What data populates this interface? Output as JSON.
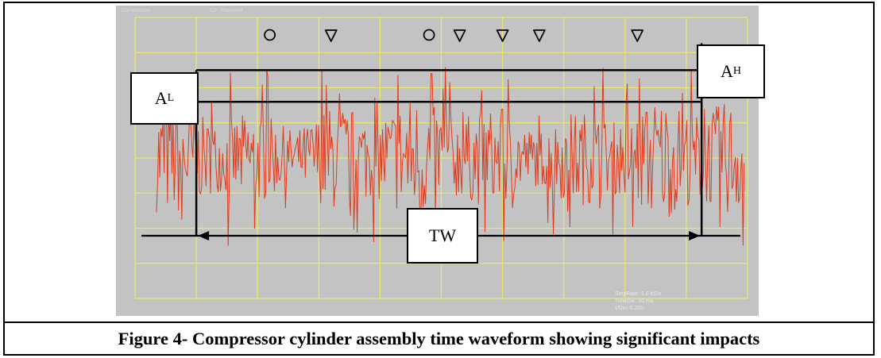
{
  "figure": {
    "caption": "Figure 4- Compressor cylinder assembly time waveform showing significant impacts"
  },
  "scope": {
    "header_left": "Compressor",
    "header_mid": "Ch: Transient",
    "readout": [
      "SmpRate: 1.0 kS/s",
      "TimeDiv: 50 ms",
      "VDiv: 0.200"
    ]
  },
  "annotations": {
    "a_low": {
      "base": "A",
      "sub": "L"
    },
    "a_high": {
      "base": "A",
      "sub": "H"
    },
    "tw": "TW",
    "markers": [
      "circle",
      "triangle",
      "circle",
      "triangle",
      "triangle",
      "triangle",
      "triangle"
    ],
    "marker_icon_names": {
      "circle": "circle-marker-icon",
      "triangle": "triangle-down-marker-icon"
    }
  },
  "colors": {
    "background": "#c3c3c3",
    "grid": "#e8e86c",
    "waveform": "#e23a1c",
    "annotation": "#000000"
  },
  "chart_data": {
    "type": "line",
    "title": "",
    "xlabel": "",
    "ylabel": "",
    "grid": true,
    "grid_divisions": {
      "x": 10,
      "y": 8
    },
    "legend": "none",
    "x_range": [
      0,
      10
    ],
    "y_range": [
      -4,
      4
    ],
    "window": {
      "start": 1.0,
      "end": 9.25
    },
    "levels": {
      "A_L": 1.6,
      "A_H": 2.5
    },
    "markers": [
      {
        "x": 2.2,
        "shape": "circle"
      },
      {
        "x": 3.2,
        "shape": "triangle"
      },
      {
        "x": 4.8,
        "shape": "circle"
      },
      {
        "x": 5.3,
        "shape": "triangle"
      },
      {
        "x": 6.0,
        "shape": "triangle"
      },
      {
        "x": 6.6,
        "shape": "triangle"
      },
      {
        "x": 8.2,
        "shape": "triangle"
      }
    ],
    "impacts": [
      {
        "x": 2.17,
        "y": 2.3
      },
      {
        "x": 4.84,
        "y": 2.4
      },
      {
        "x": 5.35,
        "y": 1.3
      },
      {
        "x": 6.0,
        "y": 1.4
      },
      {
        "x": 6.6,
        "y": 1.2
      },
      {
        "x": 8.35,
        "y": 1.3
      }
    ]
  }
}
